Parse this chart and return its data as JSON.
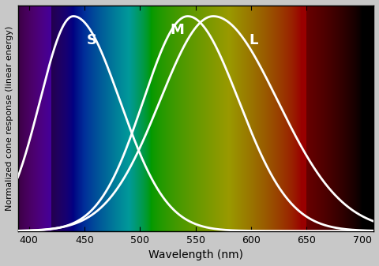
{
  "xlabel": "Wavelength (nm)",
  "ylabel": "Normalized cone response (linear energy)",
  "xlim": [
    390,
    710
  ],
  "ylim": [
    0,
    1.05
  ],
  "x_ticks": [
    400,
    450,
    500,
    550,
    600,
    650,
    700
  ],
  "S_peak": 440,
  "S_wl": 30,
  "S_wr": 42,
  "M_peak": 543,
  "M_wl": 40,
  "M_wr": 46,
  "L_peak": 566,
  "L_wl": 48,
  "L_wr": 58,
  "line_color": "#ffffff",
  "line_width": 2.0,
  "label_S": "S",
  "label_M": "M",
  "label_L": "L",
  "label_color": "#ffffff",
  "label_fontsize": 13,
  "fig_bg": "#c8c8c8",
  "axes_bg": "#000000"
}
